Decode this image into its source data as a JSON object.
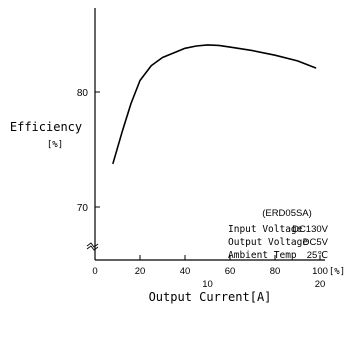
{
  "chart_data": {
    "type": "line",
    "title": "",
    "xlabel": "Output Current[A]",
    "xunit": "[%]",
    "ylabel": "Efficiency",
    "yunit": "[%]",
    "x_percent_ticks": [
      "0",
      "20",
      "40",
      "60",
      "80",
      "100"
    ],
    "x_amp_ticks": [
      "10",
      "20"
    ],
    "y_ticks": [
      "70",
      "80"
    ],
    "xlim": [
      0,
      100
    ],
    "ylim": [
      65,
      86
    ],
    "grid": false,
    "series": [
      {
        "x": [
          8,
          12,
          16,
          20,
          25,
          30,
          35,
          40,
          45,
          50,
          55,
          60,
          70,
          80,
          90,
          98
        ],
        "y": [
          73.8,
          76.5,
          79.0,
          81.0,
          82.3,
          83.0,
          83.4,
          83.8,
          84.0,
          84.1,
          84.05,
          83.9,
          83.6,
          83.2,
          82.7,
          82.1
        ]
      }
    ],
    "annotation": {
      "model": "(ERD05SA)",
      "rows": [
        {
          "label": "Input Voltage",
          "value": "DC130V"
        },
        {
          "label": "Output Voltage",
          "value": "DC5V"
        },
        {
          "label": "Ambient Temp",
          "value": "25℃"
        }
      ]
    }
  }
}
